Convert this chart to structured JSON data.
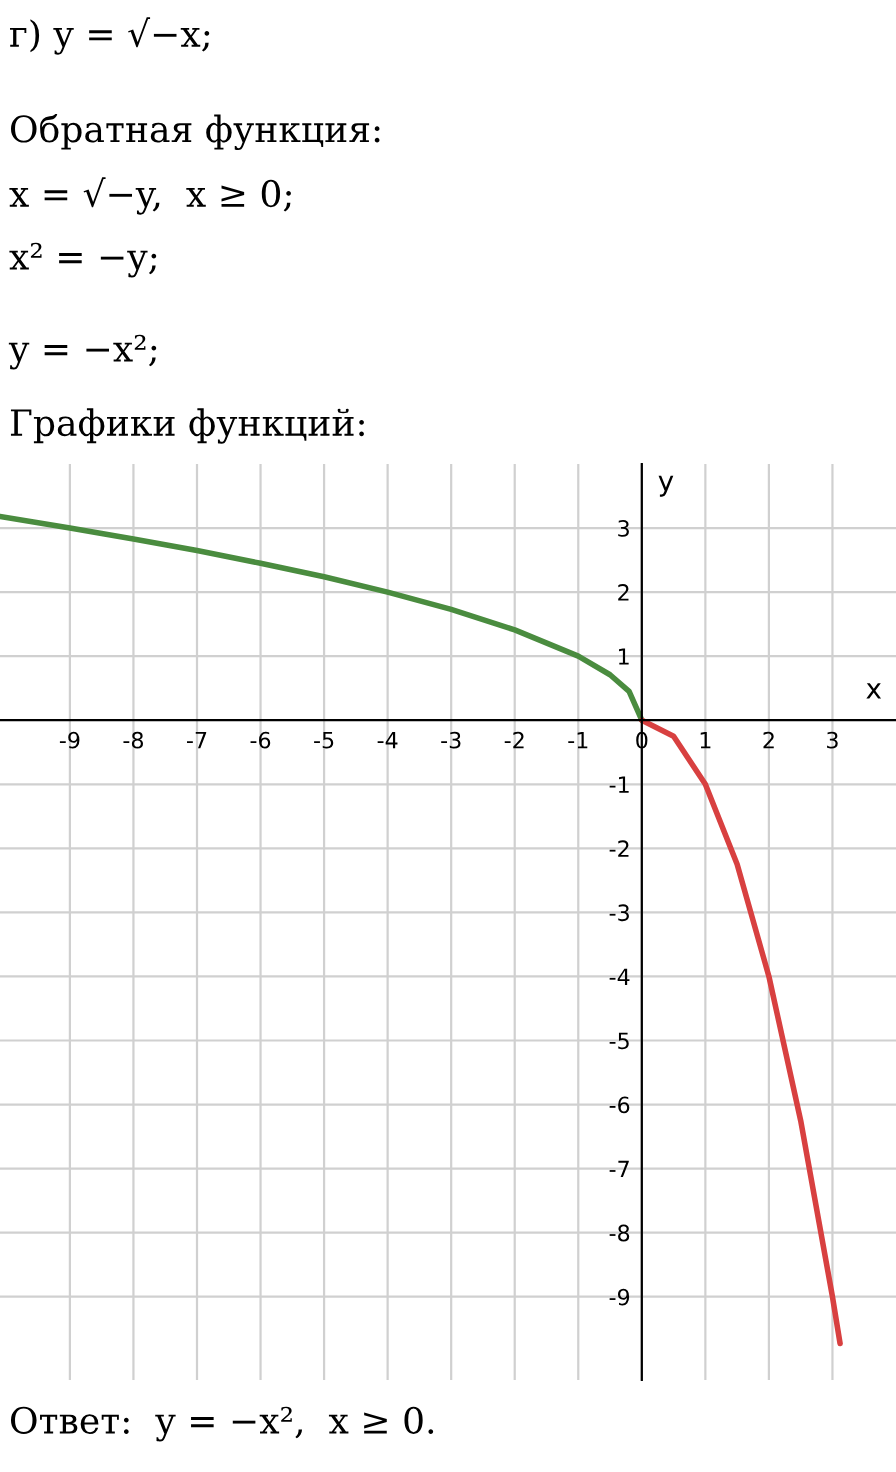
{
  "chart_data": {
    "type": "line",
    "title": "Графики функций:",
    "annotations": [
      "г) y = √−x;",
      "Обратная функция:",
      "x = √−y,  x ≥ 0;",
      "x² = −y;",
      "y = −x²;",
      "Ответ:  y = −x²,  x ≥ 0."
    ],
    "xlabel": "x",
    "ylabel": "y",
    "series": [
      {
        "color": "#4a8c3f",
        "x": [
          -10.1,
          -9,
          -8,
          -7,
          -6,
          -5,
          -4,
          -3,
          -2,
          -1,
          -0.5,
          -0.2,
          0
        ],
        "values": [
          3.18,
          3,
          2.83,
          2.65,
          2.45,
          2.24,
          2,
          1.73,
          1.41,
          1,
          0.71,
          0.45,
          0
        ]
      },
      {
        "color": "#d84040",
        "x": [
          0,
          0.5,
          1,
          1.5,
          2,
          2.5,
          3,
          3.12
        ],
        "values": [
          0,
          -0.25,
          -1,
          -2.25,
          -4,
          -6.25,
          -9,
          -9.73
        ]
      }
    ],
    "xlim": [
      -10.1,
      4
    ],
    "ylim": [
      -10.3,
      4
    ],
    "xticks": [
      -9,
      -8,
      -7,
      -6,
      -5,
      -4,
      -3,
      -2,
      -1,
      0,
      1,
      2,
      3
    ],
    "yticks": [
      -9,
      -8,
      -7,
      -6,
      -5,
      -4,
      -3,
      -2,
      -1,
      1,
      2,
      3
    ],
    "grid": true
  }
}
